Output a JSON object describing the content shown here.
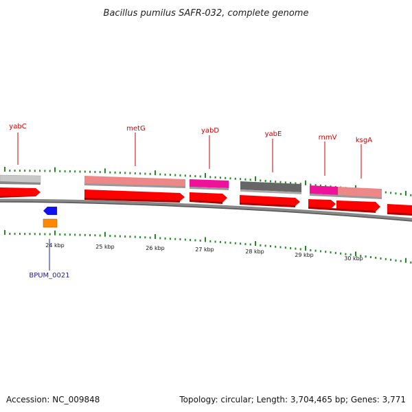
{
  "title": "Bacillus pumilus SAFR-032, complete genome",
  "footer": {
    "accession": "Accession: NC_009848",
    "topology": "Topology: circular; Length: 3,704,465 bp; Genes: 3,771"
  },
  "colors": {
    "red": "#ff0000",
    "pink": "#ee8888",
    "magenta": "#ee1199",
    "gray_light": "#c8c8c8",
    "gray_dark": "#666666",
    "blue": "#1010ee",
    "orange": "#ff8800",
    "tick_green": "#228822",
    "label_red": "#cc0000",
    "label_blue": "#1a1aa6"
  },
  "gene_labels": [
    {
      "name": "yabC",
      "color": "red"
    },
    {
      "name": "metG",
      "color": "red"
    },
    {
      "name": "yabD",
      "color": "red"
    },
    {
      "name": "yabE",
      "color": "red"
    },
    {
      "name": "rnmV",
      "color": "red"
    },
    {
      "name": "ksgA",
      "color": "red"
    },
    {
      "name": "BPUM_0021",
      "color": "blue"
    }
  ],
  "kbp_labels": [
    "24 kbp",
    "25 kbp",
    "26 kbp",
    "27 kbp",
    "28 kbp",
    "29 kbp",
    "30 kbp"
  ]
}
